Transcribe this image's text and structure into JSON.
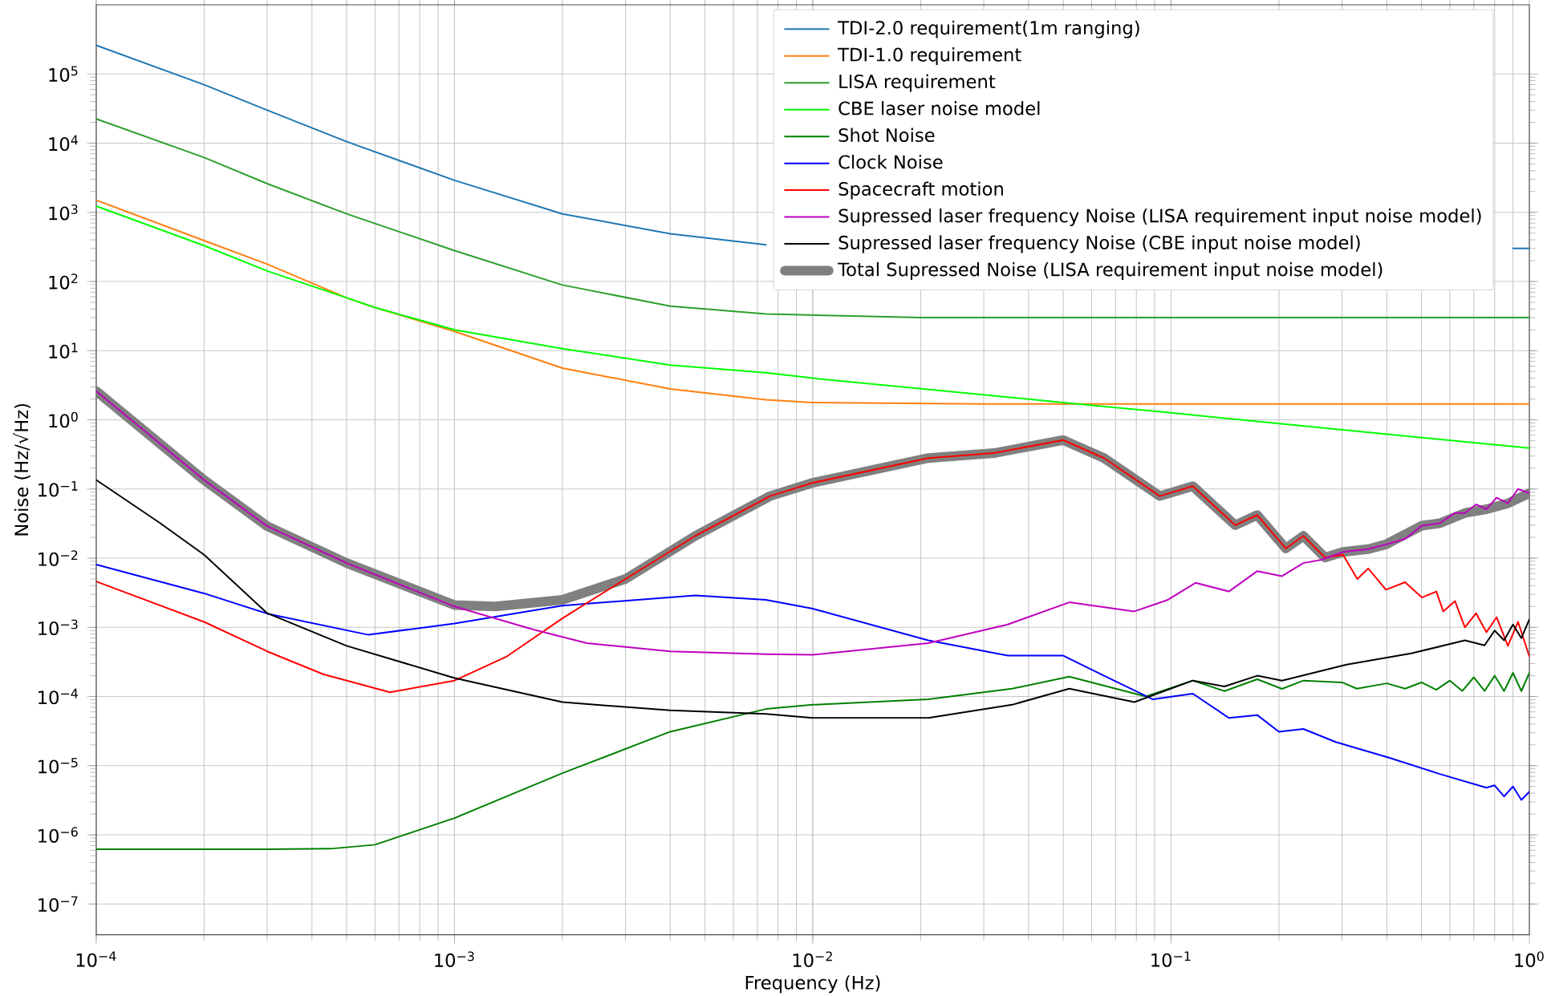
{
  "chart_data": {
    "type": "line",
    "xlabel": "Frequency (Hz)",
    "ylabel": "Noise (Hz/√Hz)",
    "log": "xy",
    "grid": true,
    "legend": "top right",
    "xlim": [
      0.0001,
      1
    ],
    "ylim": [
      3.6e-08,
      1000000
    ],
    "xticks": [
      {
        "value": 0.0001,
        "label": "10$^{−4}$"
      },
      {
        "value": 0.001,
        "label": "10$^{−3}$"
      },
      {
        "value": 0.01,
        "label": "10$^{−2}$"
      },
      {
        "value": 0.1,
        "label": "10$^{−1}$"
      },
      {
        "value": 1,
        "label": "10$^{0}$"
      }
    ],
    "yticks": [
      {
        "value": 1e-07,
        "label": "10$^{−7}$"
      },
      {
        "value": 1e-06,
        "label": "10$^{−6}$"
      },
      {
        "value": 1e-05,
        "label": "10$^{−5}$"
      },
      {
        "value": 0.0001,
        "label": "10$^{−4}$"
      },
      {
        "value": 0.001,
        "label": "10$^{−3}$"
      },
      {
        "value": 0.01,
        "label": "10$^{−2}$"
      },
      {
        "value": 0.1,
        "label": "10$^{−1}$"
      },
      {
        "value": 1,
        "label": "10$^{0}$"
      },
      {
        "value": 10,
        "label": "10$^{1}$"
      },
      {
        "value": 100,
        "label": "10$^{2}$"
      },
      {
        "value": 1000,
        "label": "10$^{3}$"
      },
      {
        "value": 10000,
        "label": "10$^{4}$"
      },
      {
        "value": 100000,
        "label": "10$^{5}$"
      }
    ],
    "series": [
      {
        "name": "TDI-2.0 requirement(1m ranging)",
        "color": "#1f77b4",
        "x": [
          0.0001,
          0.0002,
          0.0003,
          0.0005,
          0.001,
          0.002,
          0.004,
          0.0074,
          0.01,
          0.03,
          0.1,
          0.9,
          1
        ],
        "values": [
          260000,
          70000,
          30000,
          10500,
          2900,
          950,
          490,
          340,
          null,
          null,
          null,
          300,
          300
        ]
      },
      {
        "name": "TDI-1.0 requirement",
        "color": "#ff7f0e",
        "x": [
          0.0001,
          0.0002,
          0.0003,
          0.0005,
          0.0006,
          0.001,
          0.002,
          0.004,
          0.0074,
          0.01,
          0.03,
          1
        ],
        "values": [
          1500,
          390,
          178,
          58,
          42,
          19,
          5.6,
          2.8,
          1.95,
          1.78,
          1.7,
          1.7
        ]
      },
      {
        "name": "LISA requirement",
        "color": "#2ca02c",
        "x": [
          0.0001,
          0.0002,
          0.0003,
          0.0005,
          0.001,
          0.002,
          0.004,
          0.0074,
          0.02,
          1
        ],
        "values": [
          22400,
          6200,
          2600,
          950,
          280,
          89,
          44,
          34,
          30,
          30
        ]
      },
      {
        "name": "CBE laser noise model",
        "color": "#00ff00",
        "x": [
          0.0001,
          0.0002,
          0.0003,
          0.0005,
          0.0006,
          0.001,
          0.002,
          0.004,
          0.0074,
          0.01,
          0.05,
          0.1,
          1
        ],
        "values": [
          1230,
          330,
          142,
          58,
          42,
          20,
          10.7,
          6.2,
          4.8,
          4.0,
          1.78,
          1.26,
          0.39
        ]
      },
      {
        "name": "Shot Noise",
        "color": "#008000",
        "x": [
          0.0001,
          0.0003,
          0.00045,
          0.0006,
          0.001,
          0.002,
          0.004,
          0.0074,
          0.01,
          0.021,
          0.036,
          0.052,
          0.085,
          0.115,
          0.141,
          0.174,
          0.204,
          0.234,
          0.3,
          0.33,
          0.4,
          0.45,
          0.5,
          0.55,
          0.6,
          0.65,
          0.7,
          0.75,
          0.8,
          0.85,
          0.9,
          0.95,
          1
        ],
        "values": [
          6.2e-07,
          6.2e-07,
          6.3e-07,
          7.2e-07,
          1.75e-06,
          7.8e-06,
          3.1e-05,
          6.6e-05,
          7.6e-05,
          9.1e-05,
          0.00013,
          0.000194,
          0.0001,
          0.00017,
          0.00012,
          0.000178,
          0.000129,
          0.00017,
          0.00016,
          0.00013,
          0.000155,
          0.00013,
          0.00016,
          0.000125,
          0.00017,
          0.00012,
          0.00019,
          0.00012,
          0.0002,
          0.00012,
          0.00022,
          0.00012,
          0.00022
        ]
      },
      {
        "name": "Clock Noise",
        "color": "#0000ff",
        "x": [
          0.0001,
          0.0002,
          0.0003,
          0.000575,
          0.001,
          0.002,
          0.0047,
          0.0074,
          0.01,
          0.021,
          0.035,
          0.05,
          0.065,
          0.089,
          0.115,
          0.145,
          0.174,
          0.2,
          0.234,
          0.288,
          0.407,
          0.562,
          0.759,
          0.8,
          0.85,
          0.9,
          0.95,
          1
        ],
        "values": [
          0.0081,
          0.0031,
          0.00158,
          0.00078,
          0.00114,
          0.00206,
          0.0029,
          0.0025,
          0.00186,
          0.00065,
          0.00039,
          0.00039,
          0.0002,
          9.1e-05,
          0.00011,
          4.9e-05,
          5.4e-05,
          3.1e-05,
          3.4e-05,
          2.2e-05,
          1.3e-05,
          7.6e-06,
          4.8e-06,
          5.2e-06,
          3.6e-06,
          5e-06,
          3.2e-06,
          4.2e-06
        ]
      },
      {
        "name": "Spacecraft motion",
        "color": "#ff0000",
        "x": [
          0.0001,
          0.0002,
          0.0003,
          0.00043,
          0.00066,
          0.001,
          0.0014,
          0.002,
          0.003,
          0.0047,
          0.0076,
          0.01,
          0.021,
          0.032,
          0.05,
          0.065,
          0.093,
          0.115,
          0.151,
          0.174,
          0.209,
          0.234,
          0.269,
          0.302,
          0.331,
          0.355,
          0.398,
          0.45,
          0.501,
          0.55,
          0.575,
          0.62,
          0.661,
          0.71,
          0.759,
          0.81,
          0.871,
          0.93,
          1
        ],
        "values": [
          0.0046,
          0.0012,
          0.00045,
          0.00021,
          0.000115,
          0.00017,
          0.00038,
          0.00135,
          0.005,
          0.021,
          0.079,
          0.123,
          0.28,
          0.33,
          0.51,
          0.28,
          0.079,
          0.11,
          0.03,
          0.042,
          0.0138,
          0.021,
          0.0102,
          0.0112,
          0.005,
          0.0071,
          0.0035,
          0.0045,
          0.0027,
          0.0033,
          0.0017,
          0.0024,
          0.001,
          0.0016,
          0.00085,
          0.0014,
          0.00054,
          0.0012,
          0.00038
        ]
      },
      {
        "name": "Supressed laser frequency Noise (LISA requirement input noise model)",
        "color": "#bf00bf",
        "x": [
          0.0001,
          0.0002,
          0.0003,
          0.0005,
          0.001,
          0.00166,
          0.00234,
          0.004,
          0.0074,
          0.01,
          0.021,
          0.035,
          0.052,
          0.079,
          0.098,
          0.117,
          0.145,
          0.174,
          0.204,
          0.234,
          0.263,
          0.302,
          0.355,
          0.398,
          0.45,
          0.501,
          0.562,
          0.62,
          0.661,
          0.71,
          0.759,
          0.81,
          0.871,
          0.93,
          1
        ],
        "values": [
          2.6,
          0.135,
          0.029,
          0.0085,
          0.002,
          0.00093,
          0.00059,
          0.00045,
          0.00041,
          0.0004,
          0.00059,
          0.0011,
          0.0023,
          0.0017,
          0.0025,
          0.0044,
          0.0033,
          0.0065,
          0.0055,
          0.0085,
          0.0095,
          0.0123,
          0.0135,
          0.0158,
          0.019,
          0.0295,
          0.032,
          0.045,
          0.045,
          0.06,
          0.051,
          0.075,
          0.062,
          0.1,
          0.087
        ]
      },
      {
        "name": "Supressed laser frequency Noise (CBE input noise model)",
        "color": "#000000",
        "x": [
          0.0001,
          0.000151,
          0.0002,
          0.0003,
          0.0005,
          0.001,
          0.002,
          0.004,
          0.0074,
          0.01,
          0.021,
          0.036,
          0.052,
          0.079,
          0.115,
          0.141,
          0.174,
          0.204,
          0.309,
          0.468,
          0.661,
          0.75,
          0.8,
          0.85,
          0.9,
          0.95,
          1
        ],
        "values": [
          0.135,
          0.032,
          0.0112,
          0.0016,
          0.00054,
          0.000185,
          8.3e-05,
          6.3e-05,
          5.6e-05,
          4.9e-05,
          4.9e-05,
          7.6e-05,
          0.00013,
          8.3e-05,
          0.00017,
          0.00014,
          0.0002,
          0.00017,
          0.00029,
          0.00042,
          0.00065,
          0.00055,
          0.0009,
          0.00065,
          0.0011,
          0.0007,
          0.0013
        ]
      },
      {
        "name": "Total Supressed Noise  (LISA requirement input noise model)",
        "color": "#808080",
        "x": [
          0.0001,
          0.0002,
          0.0003,
          0.0005,
          0.001,
          0.0013,
          0.002,
          0.003,
          0.0047,
          0.0076,
          0.01,
          0.021,
          0.032,
          0.05,
          0.065,
          0.093,
          0.115,
          0.151,
          0.174,
          0.209,
          0.234,
          0.269,
          0.302,
          0.355,
          0.398,
          0.501,
          0.562,
          0.661,
          0.759,
          0.871,
          1
        ],
        "values": [
          2.6,
          0.135,
          0.029,
          0.0085,
          0.0021,
          0.002,
          0.0025,
          0.005,
          0.021,
          0.079,
          0.123,
          0.28,
          0.33,
          0.51,
          0.28,
          0.079,
          0.11,
          0.03,
          0.042,
          0.0138,
          0.021,
          0.0102,
          0.0123,
          0.0135,
          0.0158,
          0.0295,
          0.032,
          0.045,
          0.051,
          0.062,
          0.087
        ]
      }
    ]
  }
}
